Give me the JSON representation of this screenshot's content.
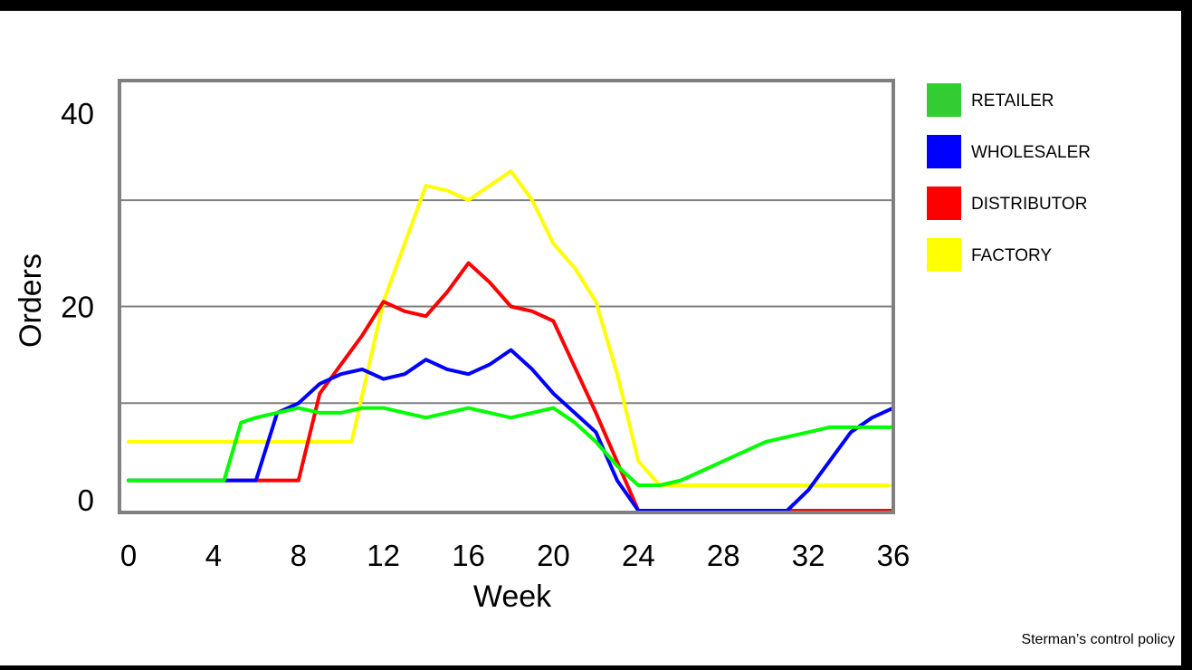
{
  "chart_data": {
    "type": "line",
    "xlabel": "Week",
    "ylabel": "Orders",
    "xlim": [
      0,
      36
    ],
    "ylim": [
      -2.5,
      42
    ],
    "x_ticks": [
      0,
      4,
      8,
      12,
      16,
      20,
      24,
      28,
      32,
      36
    ],
    "x_tick_labels": [
      "0",
      "4",
      "8",
      "12",
      "16",
      "20",
      "24",
      "28",
      "32",
      "36"
    ],
    "y_ticks": [
      0,
      20,
      40
    ],
    "y_tick_labels": [
      "0",
      "20",
      "40"
    ],
    "gridlines_y": [
      10,
      20,
      31
    ],
    "grid": true,
    "legend_position": "right",
    "series": [
      {
        "name": "FACTORY",
        "color": "#ffff00",
        "points": [
          [
            0,
            6
          ],
          [
            10.5,
            6
          ],
          [
            12,
            20.5
          ],
          [
            14,
            32.5
          ],
          [
            15,
            32
          ],
          [
            16,
            31
          ],
          [
            17,
            32.5
          ],
          [
            18,
            34
          ],
          [
            19,
            31
          ],
          [
            20,
            26.5
          ],
          [
            21,
            24
          ],
          [
            22,
            20.5
          ],
          [
            23,
            13
          ],
          [
            24,
            4
          ],
          [
            25,
            1.5
          ],
          [
            27,
            1.5
          ],
          [
            35.8,
            1.5
          ]
        ]
      },
      {
        "name": "DISTRIBUTOR",
        "color": "#ff0000",
        "points": [
          [
            0,
            2
          ],
          [
            6.5,
            2
          ],
          [
            8,
            2
          ],
          [
            9,
            11
          ],
          [
            10,
            14
          ],
          [
            11,
            17
          ],
          [
            12,
            20.5
          ],
          [
            13,
            19.5
          ],
          [
            14,
            19
          ],
          [
            15,
            21.5
          ],
          [
            16,
            24.5
          ],
          [
            17,
            22.5
          ],
          [
            18,
            20
          ],
          [
            19,
            19.5
          ],
          [
            20,
            18.5
          ],
          [
            22,
            9
          ],
          [
            24,
            -2.5
          ],
          [
            36,
            -2.5
          ]
        ]
      },
      {
        "name": "WHOLESALER",
        "color": "#0000ff",
        "points": [
          [
            0,
            2
          ],
          [
            4,
            2
          ],
          [
            6,
            2
          ],
          [
            7,
            9
          ],
          [
            8,
            10
          ],
          [
            9,
            12
          ],
          [
            10,
            13
          ],
          [
            11,
            13.5
          ],
          [
            12,
            12.5
          ],
          [
            13,
            13
          ],
          [
            14,
            14.5
          ],
          [
            15,
            13.5
          ],
          [
            16,
            13
          ],
          [
            17,
            14
          ],
          [
            18,
            15.5
          ],
          [
            19,
            13.5
          ],
          [
            20,
            11
          ],
          [
            21,
            9
          ],
          [
            22,
            7
          ],
          [
            23,
            2
          ],
          [
            24,
            -2.5
          ],
          [
            30,
            -2.5
          ],
          [
            31,
            -2
          ],
          [
            32,
            1
          ],
          [
            33,
            4
          ],
          [
            34,
            7
          ],
          [
            35,
            8.5
          ],
          [
            36,
            9.5
          ]
        ]
      },
      {
        "name": "RETAILER",
        "color": "#00ff00",
        "points": [
          [
            0,
            2
          ],
          [
            4.5,
            2
          ],
          [
            5.3,
            8
          ],
          [
            6,
            8.5
          ],
          [
            7,
            9
          ],
          [
            8,
            9.5
          ],
          [
            9,
            9
          ],
          [
            10,
            9
          ],
          [
            11,
            9.5
          ],
          [
            12,
            9.5
          ],
          [
            13,
            9
          ],
          [
            14,
            8.5
          ],
          [
            15,
            9
          ],
          [
            16,
            9.5
          ],
          [
            17,
            9
          ],
          [
            18,
            8.5
          ],
          [
            19,
            9
          ],
          [
            20,
            9.5
          ],
          [
            21,
            8
          ],
          [
            22,
            6
          ],
          [
            23,
            3.5
          ],
          [
            24,
            1.5
          ],
          [
            25,
            1.5
          ],
          [
            26,
            2
          ],
          [
            27,
            3
          ],
          [
            28,
            4
          ],
          [
            29,
            5
          ],
          [
            30,
            6
          ],
          [
            31,
            6.5
          ],
          [
            32,
            7
          ],
          [
            33,
            7.5
          ],
          [
            34,
            7.5
          ],
          [
            35,
            7.5
          ],
          [
            36,
            7.5
          ]
        ]
      }
    ],
    "legend": [
      {
        "label": "RETAILER",
        "color": "#33cc33"
      },
      {
        "label": "WHOLESALER",
        "color": "#0000ff"
      },
      {
        "label": "DISTRIBUTOR",
        "color": "#ff0000"
      },
      {
        "label": "FACTORY",
        "color": "#ffff00"
      }
    ]
  },
  "caption": "Sterman’s control policy",
  "colors": {
    "frame": "#808080",
    "gridline": "#808080",
    "background": "#ffffff",
    "border": "#000000"
  }
}
